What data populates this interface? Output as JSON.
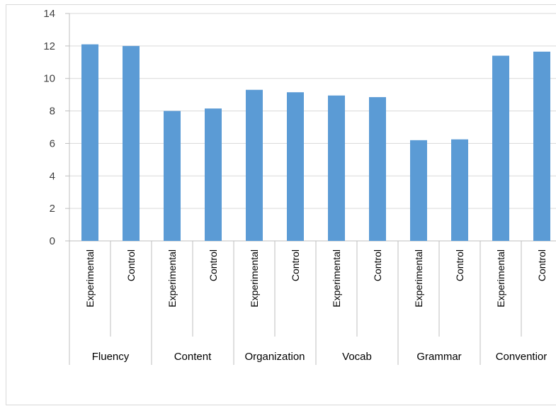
{
  "chart_data": {
    "type": "bar",
    "title": "",
    "xlabel": "",
    "ylabel": "",
    "ylim": [
      0,
      14
    ],
    "yticks": [
      0,
      2,
      4,
      6,
      8,
      10,
      12,
      14
    ],
    "grid": true,
    "legend": "none",
    "bar_color": "#5b9bd5",
    "groups": [
      {
        "name": "Fluency",
        "bars": [
          {
            "label": "Experimental",
            "value": 12.1
          },
          {
            "label": "Control",
            "value": 12.0
          }
        ]
      },
      {
        "name": "Content",
        "bars": [
          {
            "label": "Experimental",
            "value": 8.0
          },
          {
            "label": "Control",
            "value": 8.15
          }
        ]
      },
      {
        "name": "Organization",
        "bars": [
          {
            "label": "Experimental",
            "value": 9.3
          },
          {
            "label": "Control",
            "value": 9.15
          }
        ]
      },
      {
        "name": "Vocab",
        "bars": [
          {
            "label": "Experimental",
            "value": 8.95
          },
          {
            "label": "Control",
            "value": 8.85
          }
        ]
      },
      {
        "name": "Grammar",
        "bars": [
          {
            "label": "Experimental",
            "value": 6.2
          },
          {
            "label": "Control",
            "value": 6.25
          }
        ]
      },
      {
        "name": "Conventior",
        "bars": [
          {
            "label": "Experimental",
            "value": 11.4
          },
          {
            "label": "Control",
            "value": 11.65
          }
        ]
      }
    ]
  }
}
